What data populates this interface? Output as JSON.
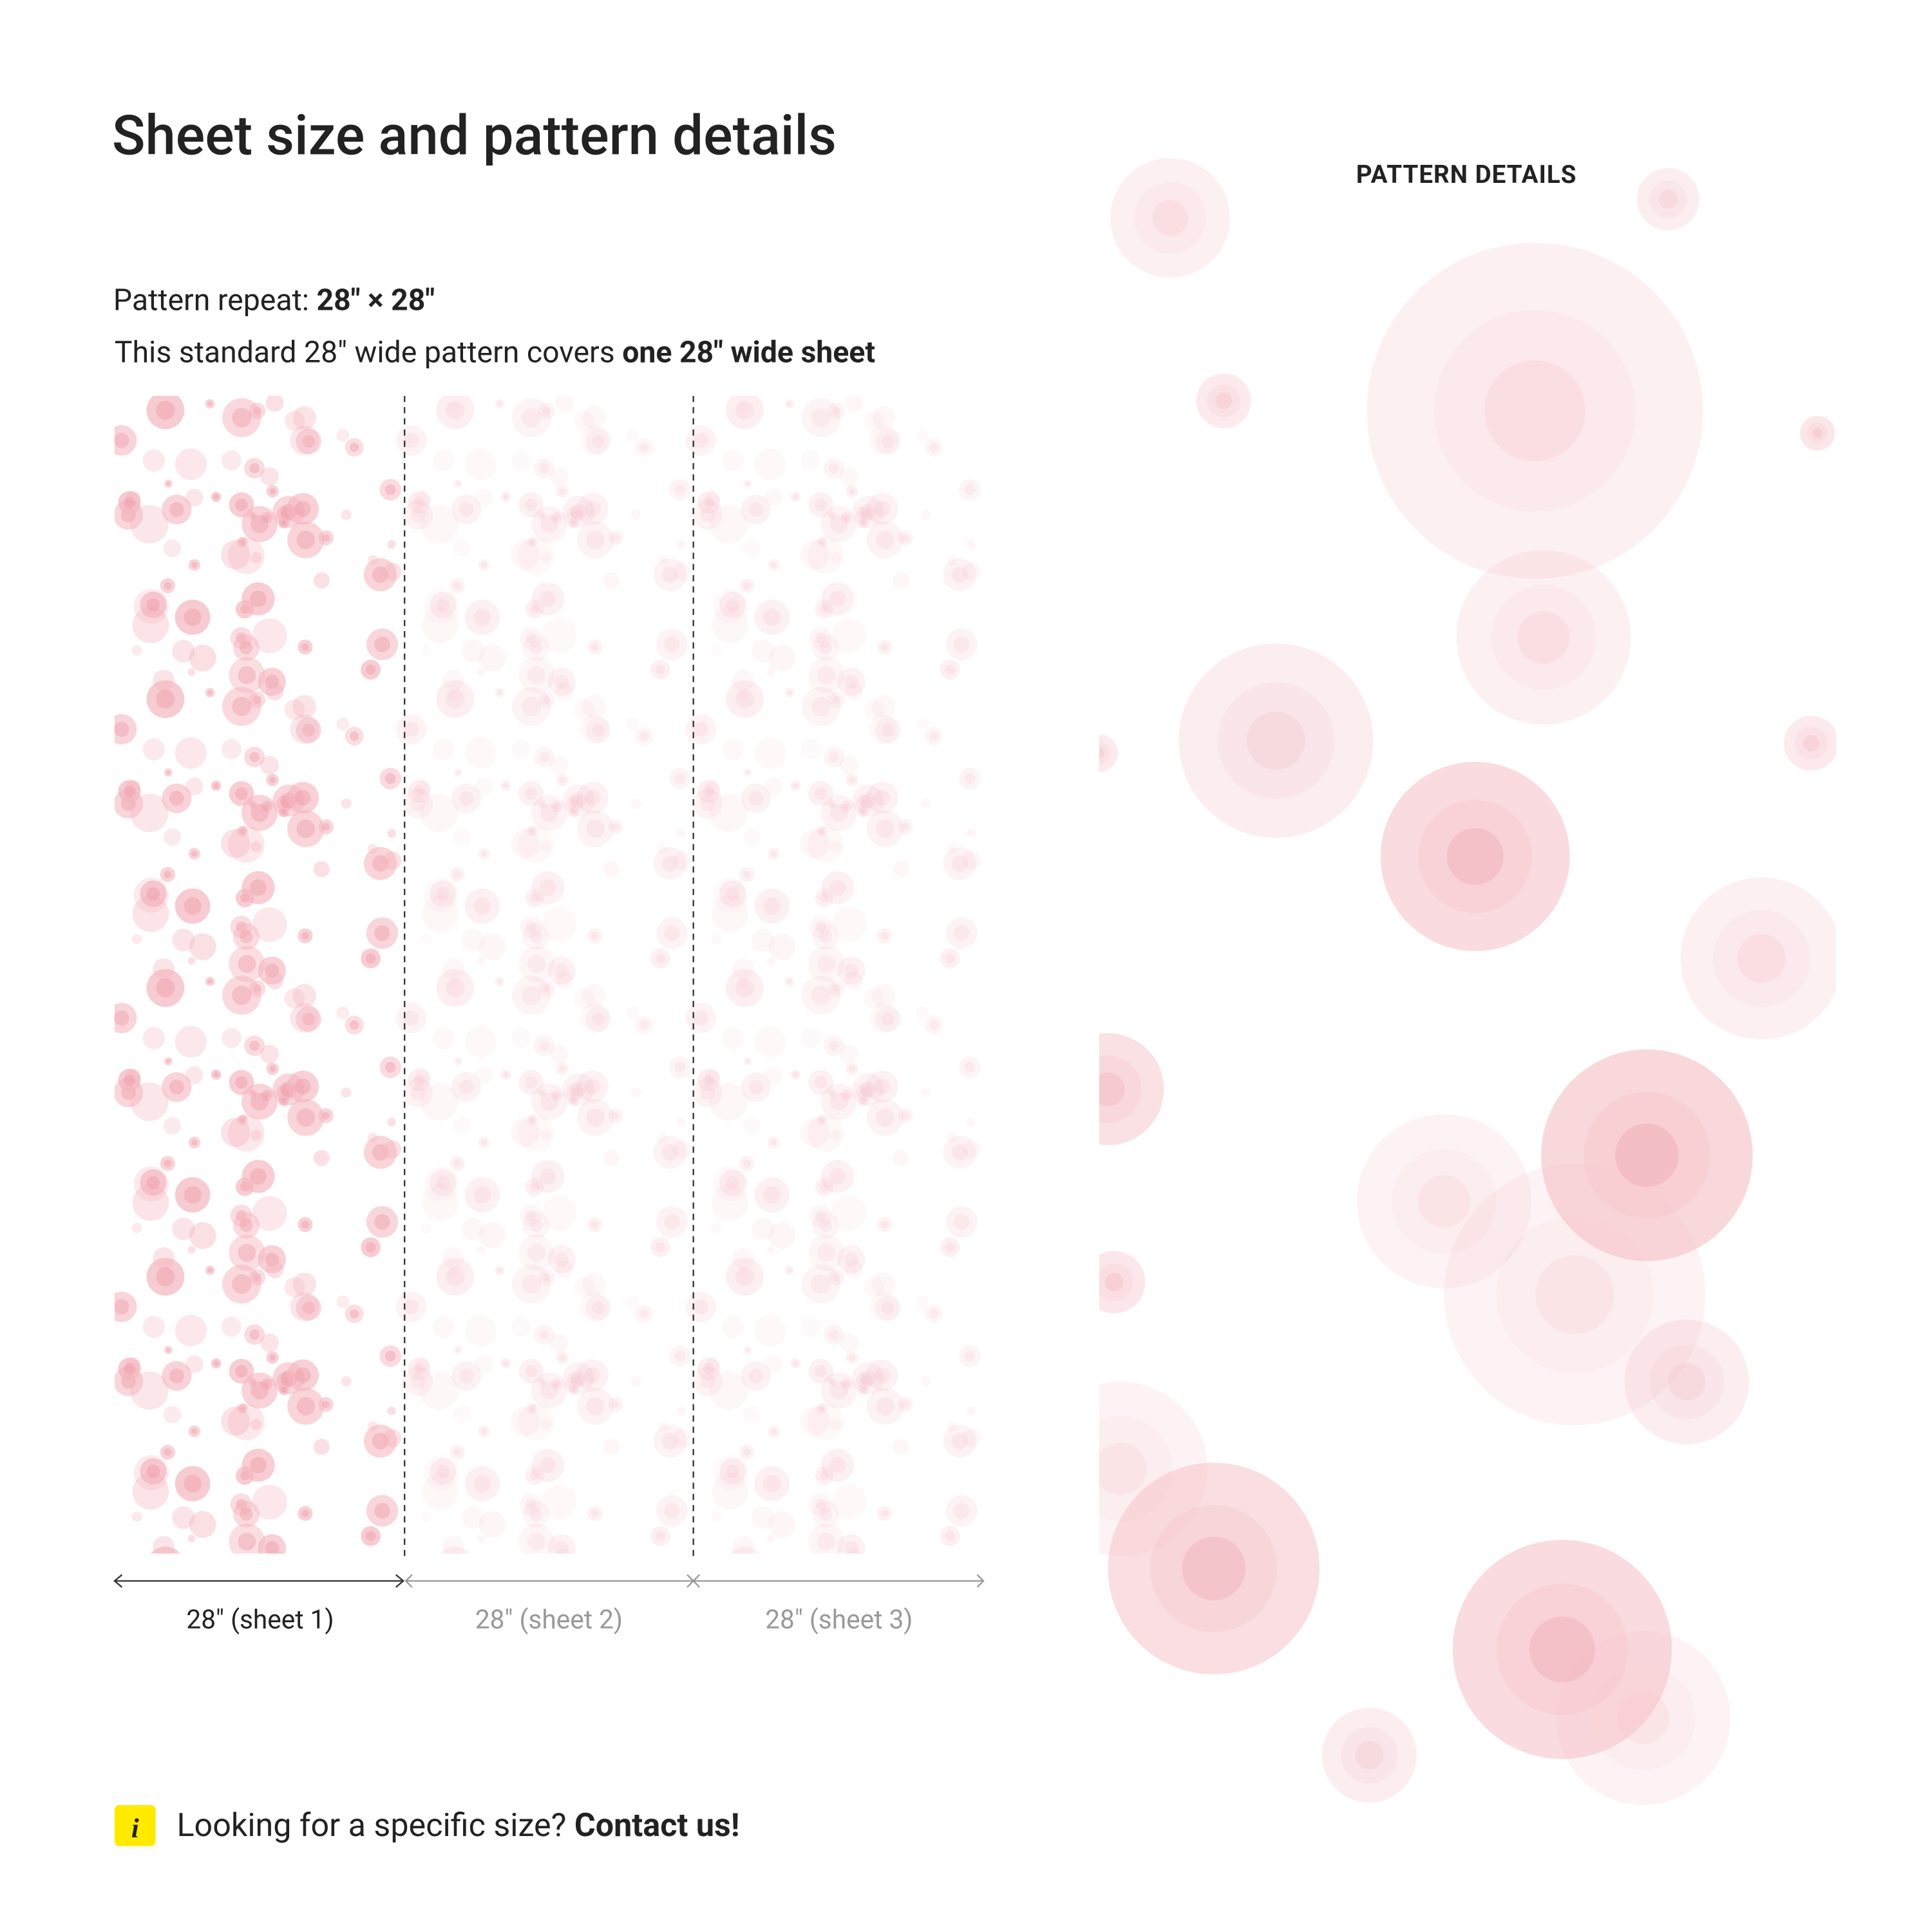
{
  "header": {
    "title": "Sheet size and pattern details"
  },
  "pattern_repeat": {
    "label": "Pattern repeat: ",
    "value": "28\" × 28\""
  },
  "coverage": {
    "text": "This standard 28\" wide pattern covers ",
    "emphasis": "one 28\" wide sheet"
  },
  "sheets": [
    "28\" (sheet 1)",
    "28\" (sheet 2)",
    "28\" (sheet 3)"
  ],
  "details": {
    "heading": "PATTERN DETAILS"
  },
  "contact": {
    "icon": "i",
    "text": "Looking for a specific size? ",
    "link": "Contact us!"
  }
}
